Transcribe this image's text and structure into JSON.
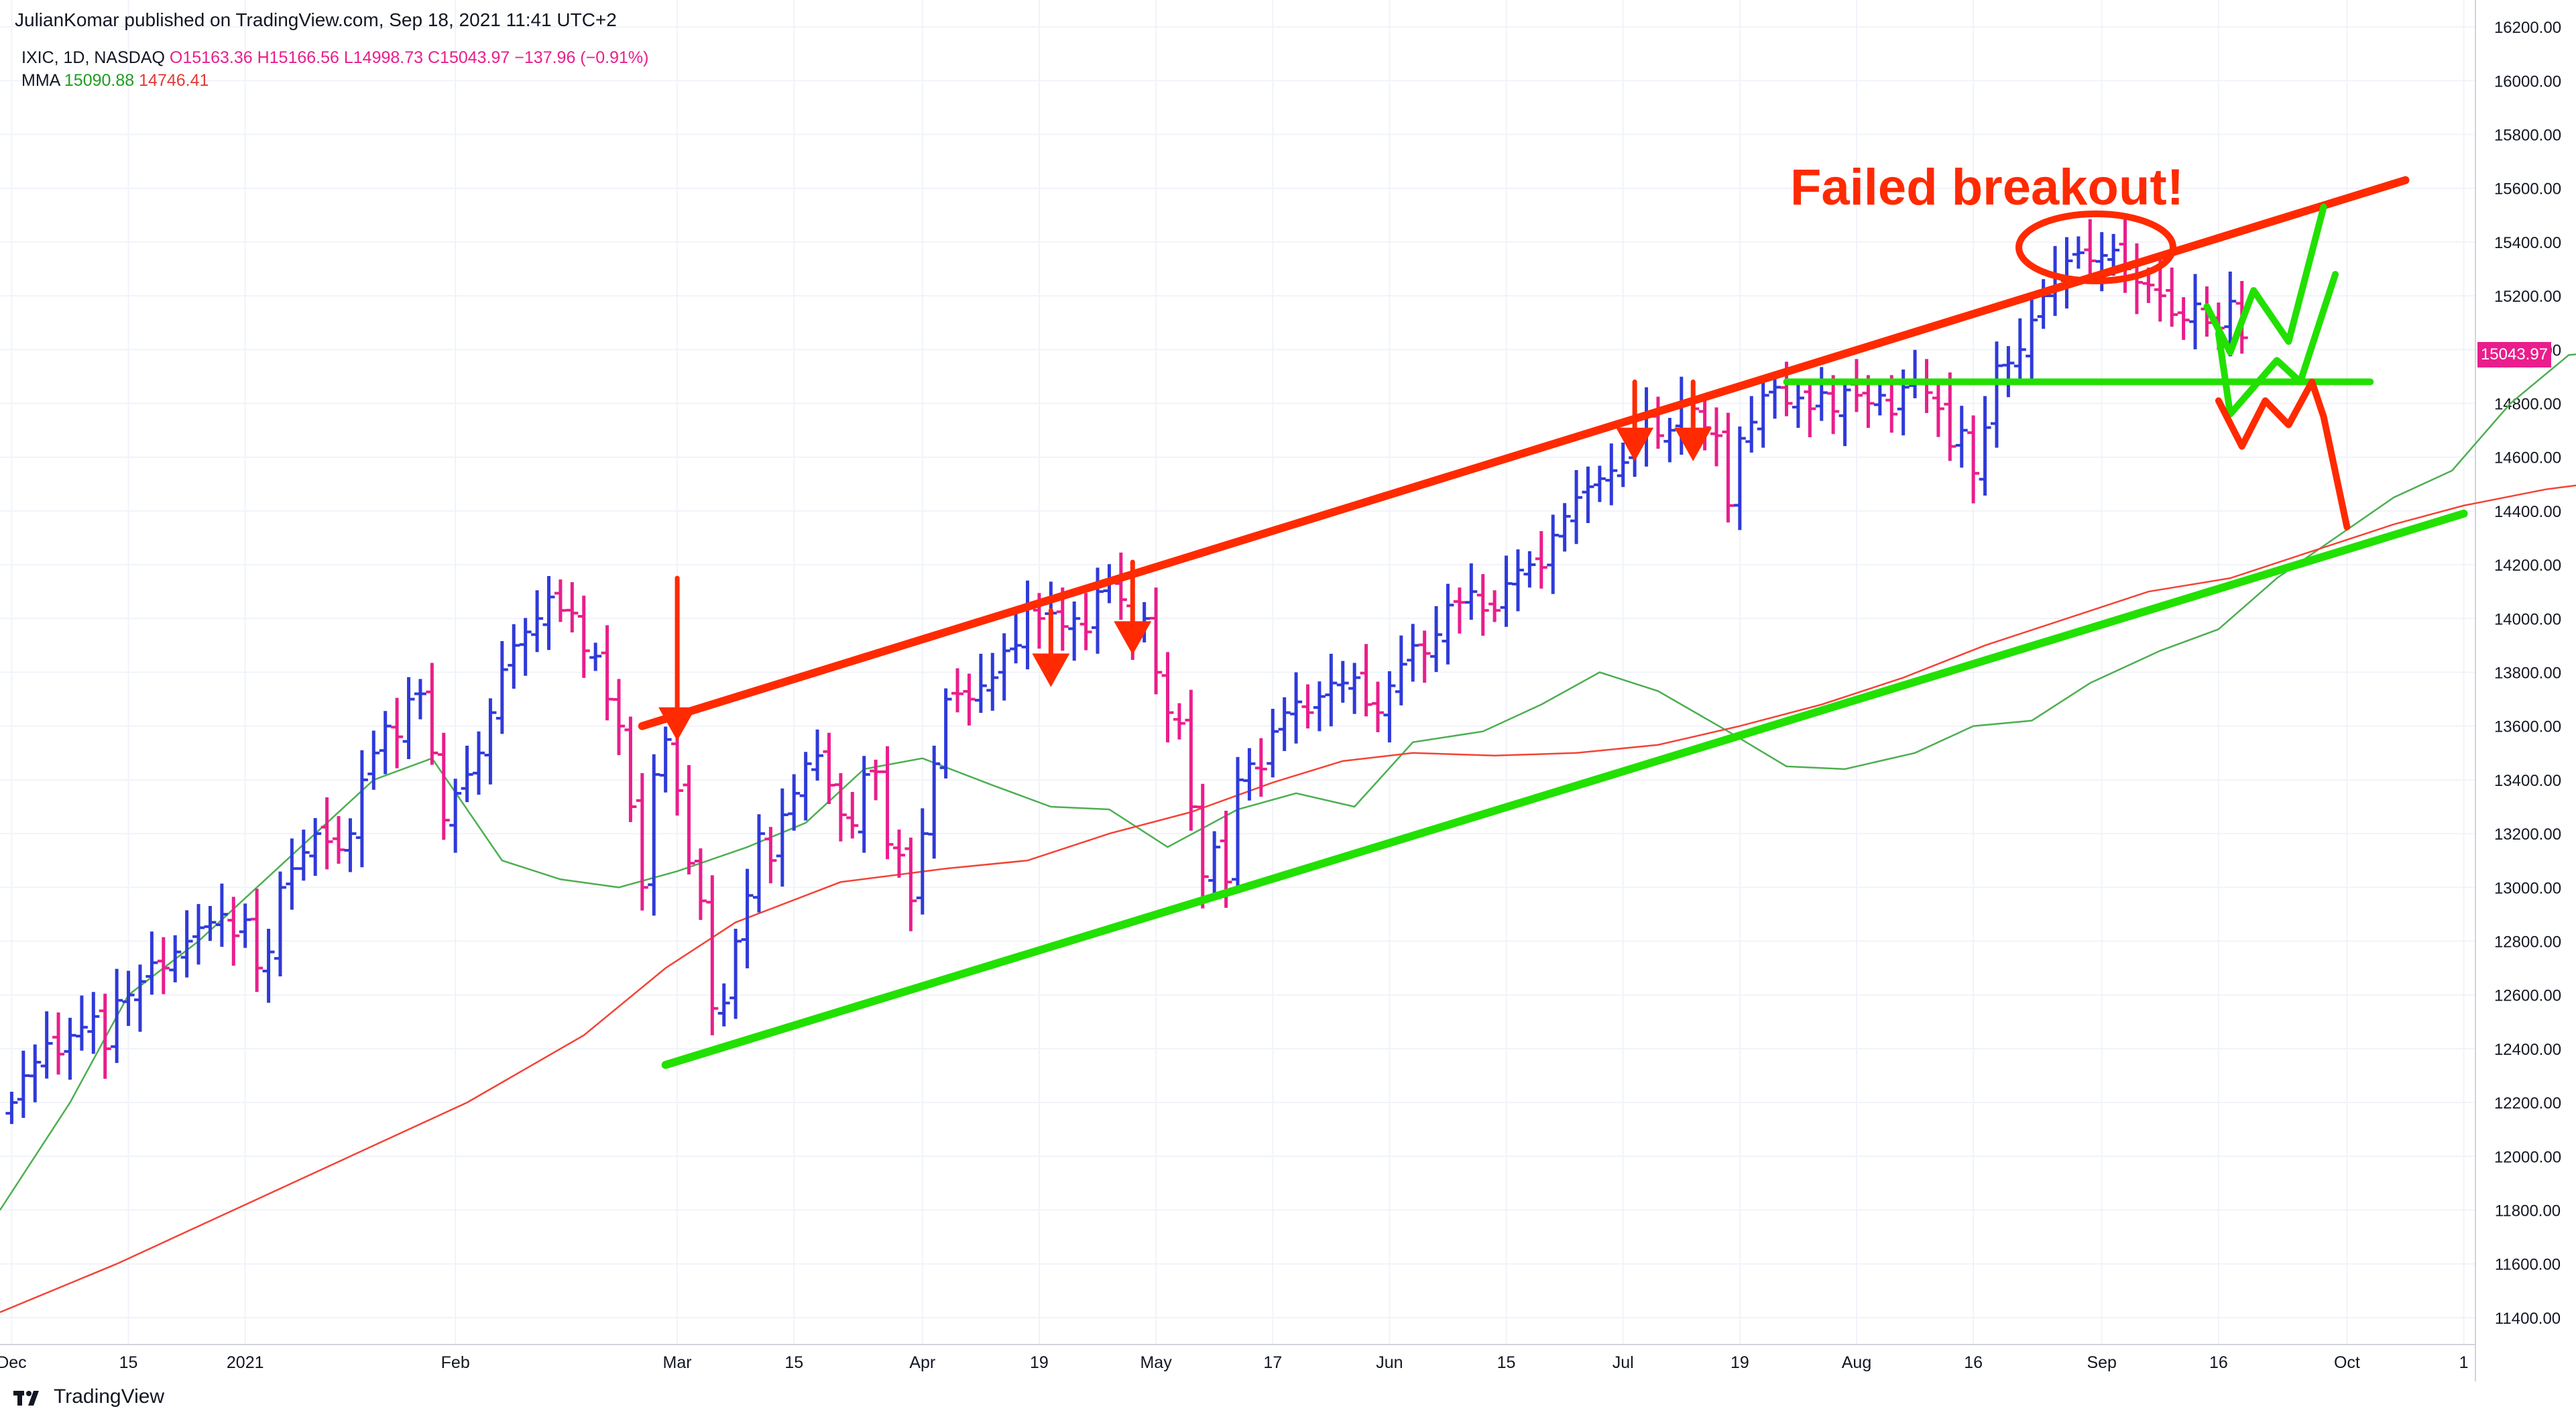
{
  "header": {
    "publisher": "JulianKomar published on TradingView.com, Sep 18, 2021 11:41 UTC+2",
    "symbol": "IXIC, 1D, NASDAQ",
    "open": "O15163.36",
    "high": "H15166.56",
    "low": "L14998.73",
    "close": "C15043.97",
    "change": "−137.96 (−0.91%)",
    "ma_label": "MMA",
    "ma_fast": "15090.88",
    "ma_slow": "14746.41"
  },
  "price_tag": "15043.97",
  "brand": "TradingView",
  "colors": {
    "up_bar": "#2f3ad9",
    "down_bar": "#e91e8c",
    "ma_fast": "#4caf50",
    "ma_slow": "#f44336",
    "resistance": "#ff2a00",
    "support": "#22e000",
    "annotation_text": "#ff2a00"
  },
  "chart_data": {
    "type": "ohlc",
    "title": "",
    "annotation": "Failed breakout!",
    "y_ticks": [
      "16200.00",
      "16000.00",
      "15800.00",
      "15600.00",
      "15400.00",
      "15200.00",
      "15000.00",
      "14800.00",
      "14600.00",
      "14400.00",
      "14200.00",
      "14000.00",
      "13800.00",
      "13600.00",
      "13400.00",
      "13200.00",
      "13000.00",
      "12800.00",
      "12600.00",
      "12400.00",
      "12200.00",
      "12000.00",
      "11800.00",
      "11600.00",
      "11400.00"
    ],
    "ylim": [
      11300,
      16300
    ],
    "x_ticks": [
      {
        "label": "Dec",
        "bar": 0
      },
      {
        "label": "15",
        "bar": 10
      },
      {
        "label": "2021",
        "bar": 20
      },
      {
        "label": "Feb",
        "bar": 38
      },
      {
        "label": "Mar",
        "bar": 57
      },
      {
        "label": "15",
        "bar": 67
      },
      {
        "label": "Apr",
        "bar": 78
      },
      {
        "label": "19",
        "bar": 88
      },
      {
        "label": "May",
        "bar": 98
      },
      {
        "label": "17",
        "bar": 108
      },
      {
        "label": "Jun",
        "bar": 118
      },
      {
        "label": "15",
        "bar": 128
      },
      {
        "label": "Jul",
        "bar": 138
      },
      {
        "label": "19",
        "bar": 148
      },
      {
        "label": "Aug",
        "bar": 158
      },
      {
        "label": "16",
        "bar": 168
      },
      {
        "label": "Sep",
        "bar": 179
      },
      {
        "label": "16",
        "bar": 189
      },
      {
        "label": "Oct",
        "bar": 200
      },
      {
        "label": "1",
        "bar": 210
      }
    ],
    "bar_range": [
      -1,
      211
    ],
    "closes": [
      12200,
      12300,
      12350,
      12420,
      12380,
      12450,
      12480,
      12520,
      12400,
      12580,
      12600,
      12650,
      12720,
      12700,
      12760,
      12800,
      12850,
      12870,
      12900,
      12820,
      12880,
      12700,
      12760,
      13000,
      13070,
      13130,
      13200,
      13170,
      13140,
      13200,
      13400,
      13500,
      13600,
      13560,
      13700,
      13720,
      13500,
      13250,
      13350,
      13420,
      13500,
      13650,
      13810,
      13900,
      13950,
      14000,
      14080,
      14030,
      14020,
      13880,
      13860,
      13700,
      13600,
      13300,
      13000,
      13420,
      13550,
      13360,
      13090,
      12950,
      12550,
      12570,
      12800,
      12970,
      13200,
      13100,
      13270,
      13350,
      13460,
      13490,
      13380,
      13270,
      13230,
      13420,
      13430,
      13160,
      13120,
      12950,
      13200,
      13460,
      13700,
      13720,
      13700,
      13750,
      13780,
      13880,
      13900,
      14050,
      14000,
      14020,
      13970,
      14000,
      13950,
      14100,
      14140,
      14070,
      13950,
      14000,
      13800,
      13650,
      13610,
      13300,
      13040,
      13150,
      13020,
      13400,
      13460,
      13440,
      13580,
      13650,
      13690,
      13650,
      13710,
      13760,
      13760,
      13780,
      13680,
      13650,
      13750,
      13830,
      13900,
      13870,
      13940,
      14050,
      14060,
      14100,
      14030,
      14030,
      14130,
      14180,
      14200,
      14190,
      14310,
      14380,
      14450,
      14490,
      14520,
      14550,
      14580,
      14660,
      14760,
      14680,
      14700,
      14800,
      14780,
      14710,
      14680,
      14420,
      14670,
      14730,
      14830,
      14860,
      14800,
      14820,
      14780,
      14840,
      14770,
      14850,
      14830,
      14800,
      14830,
      14760,
      14860,
      14880,
      14840,
      14780,
      14640,
      14700,
      14540,
      14710,
      14940,
      14950,
      15000,
      15110,
      15200,
      15270,
      15330,
      15360,
      15330,
      15350,
      15370,
      15300,
      15250,
      15240,
      15200,
      15130,
      15110,
      15170,
      15100,
      15080,
      15180,
      15043.97
    ],
    "series": [
      {
        "name": "MMA",
        "values": [
          11800,
          12200,
          12600,
          12800,
          13000,
          13200,
          13400,
          13480,
          13100,
          13030,
          13000,
          13060,
          13150,
          13240,
          13440,
          13480,
          13380,
          13300,
          13290,
          13150,
          13290,
          13350,
          13300,
          13540,
          13580,
          13680,
          13800,
          13730,
          13580,
          13450,
          13440,
          13500,
          13600,
          13620,
          13760,
          13880,
          13960,
          14150,
          14300,
          14450,
          14550,
          14800,
          14980,
          15000,
          15050,
          15050,
          15060,
          15090
        ]
      },
      {
        "name": "MMA",
        "values": [
          11420,
          11600,
          11800,
          12000,
          12200,
          12450,
          12700,
          12870,
          13020,
          13070,
          13100,
          13200,
          13280,
          13390,
          13470,
          13500,
          13490,
          13500,
          13530,
          13600,
          13680,
          13780,
          13900,
          14000,
          14100,
          14150,
          14250,
          14350,
          14420,
          14480,
          14520,
          14560,
          14640,
          14700,
          14746.41
        ]
      }
    ],
    "series_x": [
      [
        -1,
        5,
        10,
        16,
        21,
        26,
        31,
        36,
        42,
        47,
        52,
        57,
        63,
        68,
        73,
        78,
        84,
        89,
        94,
        99,
        105,
        110,
        115,
        120,
        126,
        131,
        136,
        141,
        147,
        152,
        157,
        163,
        168,
        173,
        178,
        184,
        189,
        194,
        199,
        204,
        209,
        214,
        219,
        224,
        229,
        234,
        239,
        244
      ],
      [
        -1,
        9,
        19,
        29,
        39,
        49,
        56,
        62,
        71,
        80,
        87,
        94,
        101,
        108,
        114,
        120,
        127,
        134,
        141,
        148,
        155,
        162,
        169,
        176,
        183,
        190,
        197,
        204,
        210,
        217,
        224,
        231,
        237,
        243,
        249
      ]
    ]
  }
}
